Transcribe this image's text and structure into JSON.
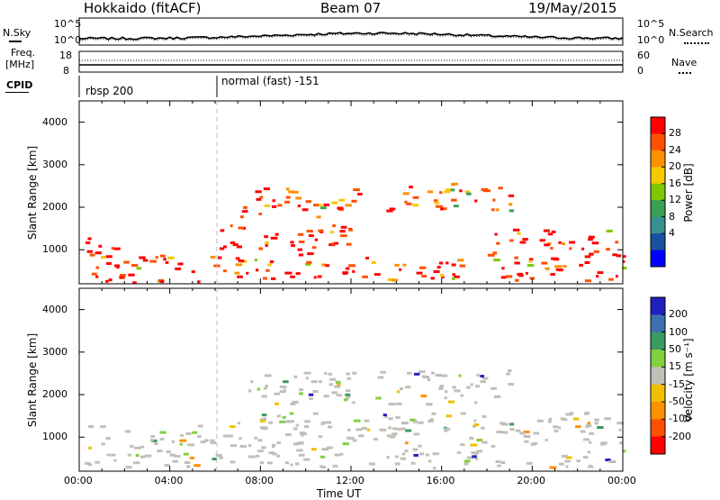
{
  "header": {
    "radar": "Hokkaido (fitACF)",
    "beam": "Beam 07",
    "date": "19/May/2015"
  },
  "top_panels": {
    "noise_left_label": "N.Sky",
    "noise_right_label": "N.Search",
    "noise_ticks_left": [
      "10^5",
      "10^0"
    ],
    "noise_ticks_right": [
      "10^5",
      "10^0"
    ],
    "freq_label_line1": "Freq.",
    "freq_label_line2": "[MHz]",
    "freq_ticks": [
      "18",
      "8"
    ],
    "nave_label": "Nave",
    "nave_ticks": [
      "60",
      "0"
    ],
    "cpid_label": "CPID",
    "cpid_segments": [
      {
        "label": "rbsp 200",
        "start_hour": 0
      },
      {
        "label": "normal (fast) -151",
        "start_hour": 6
      }
    ]
  },
  "chart_data": [
    {
      "type": "heatmap",
      "name": "power",
      "ylabel": "Slant Range [km]",
      "xlabel": "",
      "y_ticks": [
        1000,
        2000,
        3000,
        4000
      ],
      "ylim": [
        200,
        4500
      ],
      "x_tick_labels": [
        "00:00",
        "04:00",
        "08:00",
        "12:00",
        "16:00",
        "20:00",
        "00:00"
      ],
      "xlim_hours": [
        0,
        24
      ],
      "colorbar": {
        "label": "Power [dB]",
        "tick_labels": [
          "28",
          "24",
          "20",
          "16",
          "12",
          "8",
          "4"
        ],
        "colors": [
          "#ff0000",
          "#ff5000",
          "#ff9000",
          "#f5c800",
          "#7ec800",
          "#3aa055",
          "#3a9090",
          "#1a50a0",
          "#0000ff"
        ]
      },
      "regions": [
        {
          "t0": 0.2,
          "t1": 1.8,
          "r0": 300,
          "r1": 1300,
          "level": "high"
        },
        {
          "t0": 1.0,
          "t1": 6.0,
          "r0": 250,
          "r1": 900,
          "level": "high"
        },
        {
          "t0": 6.0,
          "t1": 12.0,
          "r0": 350,
          "r1": 1600,
          "level": "high"
        },
        {
          "t0": 7.0,
          "t1": 12.5,
          "r0": 1800,
          "r1": 2500,
          "level": "mid"
        },
        {
          "t0": 12.0,
          "t1": 17.0,
          "r0": 300,
          "r1": 900,
          "level": "high"
        },
        {
          "t0": 13.5,
          "t1": 19.0,
          "r0": 1900,
          "r1": 2600,
          "level": "mid"
        },
        {
          "t0": 18.0,
          "t1": 24.0,
          "r0": 300,
          "r1": 1500,
          "level": "high"
        }
      ]
    },
    {
      "type": "heatmap",
      "name": "velocity",
      "ylabel": "Slant Range [km]",
      "xlabel": "Time UT",
      "y_ticks": [
        1000,
        2000,
        3000,
        4000
      ],
      "ylim": [
        200,
        4500
      ],
      "x_tick_labels": [
        "00:00",
        "04:00",
        "08:00",
        "12:00",
        "16:00",
        "20:00",
        "00:00"
      ],
      "xlim_hours": [
        0,
        24
      ],
      "colorbar": {
        "label": "Velocity [m s⁻¹]",
        "tick_labels": [
          "200",
          "100",
          "50",
          "15",
          "-15",
          "-50",
          "-100",
          "-200"
        ],
        "colors": [
          "#2020c0",
          "#3a70b0",
          "#3a9a60",
          "#80d040",
          "#c0c0b8",
          "#f0c000",
          "#ff9000",
          "#ff5000",
          "#ff0000"
        ]
      },
      "regions": [
        {
          "t0": 0.2,
          "t1": 6.0,
          "r0": 300,
          "r1": 1300,
          "level": "ground"
        },
        {
          "t0": 6.0,
          "t1": 24.0,
          "r0": 300,
          "r1": 1600,
          "level": "ground"
        },
        {
          "t0": 7.0,
          "t1": 19.0,
          "r0": 1800,
          "r1": 2600,
          "level": "ground"
        }
      ]
    }
  ]
}
